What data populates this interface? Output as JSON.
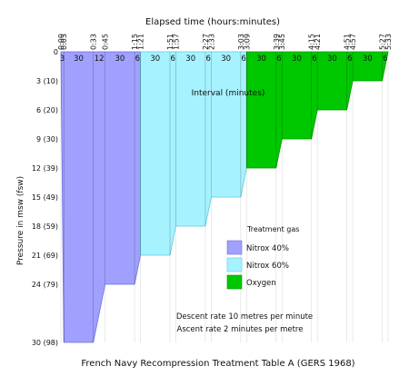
{
  "chart_data": {
    "type": "area",
    "title": "French Navy Recompression Treatment Table A (GERS 1968)",
    "top_axis_label": "Elapsed time (hours:minutes)",
    "ylabel": "Pressure in msw (fsw)",
    "xlim": [
      0,
      333
    ],
    "ylim": [
      0,
      30
    ],
    "time_ticks": [
      {
        "t": 0,
        "label": "0:00"
      },
      {
        "t": 3,
        "label": "0:03"
      },
      {
        "t": 33,
        "label": "0:33"
      },
      {
        "t": 45,
        "label": "0:45"
      },
      {
        "t": 75,
        "label": "1:15"
      },
      {
        "t": 81,
        "label": "1:21"
      },
      {
        "t": 111,
        "label": "1:51"
      },
      {
        "t": 117,
        "label": "1:57"
      },
      {
        "t": 147,
        "label": "2:27"
      },
      {
        "t": 153,
        "label": "2:33"
      },
      {
        "t": 183,
        "label": "3:03"
      },
      {
        "t": 189,
        "label": "3:09"
      },
      {
        "t": 219,
        "label": "3:39"
      },
      {
        "t": 225,
        "label": "3:45"
      },
      {
        "t": 255,
        "label": "4:15"
      },
      {
        "t": 261,
        "label": "4:21"
      },
      {
        "t": 291,
        "label": "4:51"
      },
      {
        "t": 297,
        "label": "4:57"
      },
      {
        "t": 327,
        "label": "5:27"
      },
      {
        "t": 333,
        "label": "5:33"
      }
    ],
    "depth_ticks": [
      {
        "d": 0,
        "label": "0"
      },
      {
        "d": 3,
        "label": "3 (10)"
      },
      {
        "d": 6,
        "label": "6 (20)"
      },
      {
        "d": 9,
        "label": "9 (30)"
      },
      {
        "d": 12,
        "label": "12 (39)"
      },
      {
        "d": 15,
        "label": "15 (49)"
      },
      {
        "d": 18,
        "label": "18 (59)"
      },
      {
        "d": 21,
        "label": "21 (69)"
      },
      {
        "d": 24,
        "label": "24 (79)"
      },
      {
        "d": 30,
        "label": "30 (98)"
      }
    ],
    "duration_labels": [
      {
        "t": 1.5,
        "label": "3"
      },
      {
        "t": 18,
        "label": "30"
      },
      {
        "t": 39,
        "label": "12"
      },
      {
        "t": 60,
        "label": "30"
      },
      {
        "t": 78,
        "label": "6"
      },
      {
        "t": 96,
        "label": "30"
      },
      {
        "t": 114,
        "label": "6"
      },
      {
        "t": 132,
        "label": "30"
      },
      {
        "t": 150,
        "label": "6"
      },
      {
        "t": 168,
        "label": "30"
      },
      {
        "t": 186,
        "label": "6"
      },
      {
        "t": 204,
        "label": "30"
      },
      {
        "t": 222,
        "label": "6"
      },
      {
        "t": 240,
        "label": "30"
      },
      {
        "t": 258,
        "label": "6"
      },
      {
        "t": 276,
        "label": "30"
      },
      {
        "t": 294,
        "label": "6"
      },
      {
        "t": 312,
        "label": "30"
      },
      {
        "t": 330,
        "label": "6"
      }
    ],
    "segments": [
      {
        "gas": "nitrox40",
        "points": [
          [
            0,
            0
          ],
          [
            3,
            30
          ],
          [
            33,
            30
          ],
          [
            45,
            24
          ],
          [
            75,
            24
          ],
          [
            81,
            21
          ]
        ]
      },
      {
        "gas": "nitrox60",
        "points": [
          [
            81,
            21
          ],
          [
            111,
            21
          ],
          [
            117,
            18
          ],
          [
            147,
            18
          ],
          [
            153,
            15
          ],
          [
            183,
            15
          ],
          [
            189,
            12
          ]
        ]
      },
      {
        "gas": "oxygen",
        "points": [
          [
            189,
            12
          ],
          [
            219,
            12
          ],
          [
            225,
            9
          ],
          [
            255,
            9
          ],
          [
            261,
            6
          ],
          [
            291,
            6
          ],
          [
            297,
            3
          ],
          [
            327,
            3
          ],
          [
            333,
            0
          ]
        ]
      }
    ],
    "interval_label": "Interval (minutes)",
    "legend": {
      "title": "Treatment gas",
      "position": "right",
      "items": [
        {
          "key": "nitrox40",
          "label": "Nitrox 40%",
          "color": "#a0a0ff"
        },
        {
          "key": "nitrox60",
          "label": "Nitrox 60%",
          "color": "#a6f2ff"
        },
        {
          "key": "oxygen",
          "label": "Oxygen",
          "color": "#00c800"
        }
      ]
    },
    "notes": [
      "Descent rate 10 metres per minute",
      "Ascent rate 2 minutes per metre"
    ]
  }
}
